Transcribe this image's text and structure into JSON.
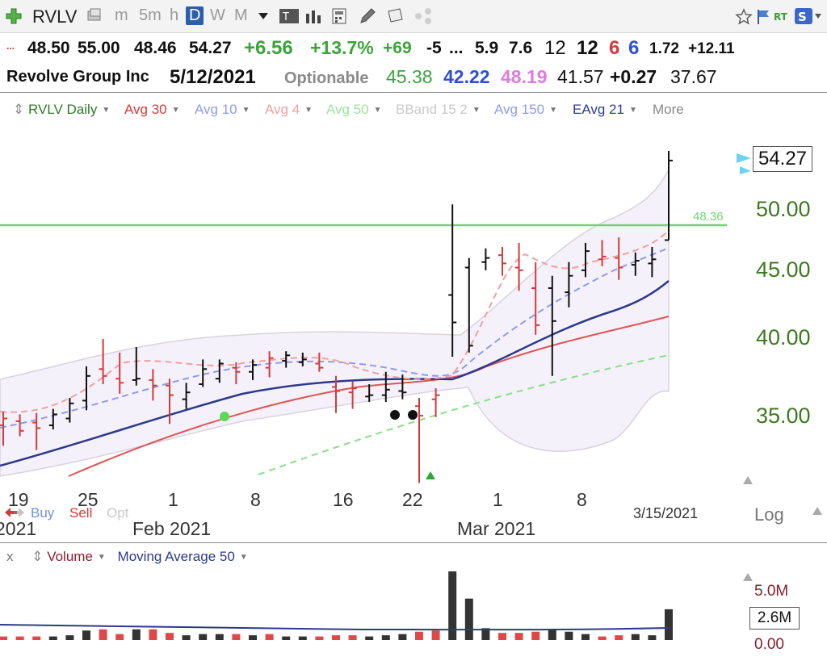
{
  "toolbar": {
    "symbol": "RVLV",
    "intervals": [
      "m",
      "5m",
      "h",
      "D",
      "W",
      "M"
    ],
    "active_interval": "D"
  },
  "quote": {
    "open": "48.50",
    "high": "55.00",
    "low": "48.46",
    "last": "54.27",
    "change": "+6.56",
    "change_pct": "+13.7%",
    "f1": "+69",
    "f2": "-5",
    "f3": "...",
    "f4": "5.9",
    "f5": "7.6",
    "f6": "12",
    "f7": "12",
    "f8": "6",
    "f9": "6",
    "f10": "1.72",
    "f11": "+12.11",
    "company": "Revolve Group Inc",
    "date": "5/12/2021",
    "optionable": "Optionable",
    "v1": "45.38",
    "v2": "42.22",
    "v3": "48.19",
    "v4": "41.57",
    "v5": "+0.27",
    "v6": "37.67",
    "menu_dots": "..."
  },
  "legend": {
    "symbol_label": "RVLV Daily",
    "avg30": "Avg 30",
    "avg10": "Avg 10",
    "avg4": "Avg 4",
    "avg50": "Avg 50",
    "bband": "BBand 15 2",
    "avg150": "Avg 150",
    "eavg21": "EAvg 21",
    "more": "More"
  },
  "colors": {
    "up_bar": "#111111",
    "down_bar": "#d43a3a",
    "avg30": "#e05555",
    "avg10": "#8f9af0",
    "avg4": "#f0a0a0",
    "avg50": "#7fe07f",
    "avg150": "#2d3a8c",
    "green_line": "#6fd66f",
    "price_label": "#3c7a1e"
  },
  "price_axis": {
    "ticks": [
      "50.00",
      "45.00",
      "40.00",
      "35.00"
    ],
    "last_label": "54.27",
    "green_line_label": "48.36"
  },
  "date_axis": {
    "days": [
      "19",
      "25",
      "1",
      "8",
      "16",
      "22",
      "1",
      "8"
    ],
    "months": [
      "2021",
      "Feb 2021",
      "Mar 2021"
    ],
    "current_date": "3/15/2021",
    "log_label": "Log"
  },
  "trade_buttons": {
    "buy": "Buy",
    "sell": "Sell",
    "opt": "Opt"
  },
  "volume": {
    "close_label": "x",
    "volume_label": "Volume",
    "ma_label": "Moving Average 50",
    "ticks": [
      "5.0M",
      "0.00"
    ],
    "current": "2.6M"
  },
  "chart_data": {
    "type": "bar",
    "note_series": "OHLC daily bars (black = up, red = down)",
    "ylim": [
      31,
      56
    ],
    "bars": [
      {
        "h": 36.0,
        "l": 33.5,
        "o": 35.0,
        "c": 35.5,
        "dir": "down"
      },
      {
        "h": 35.8,
        "l": 34.2,
        "o": 35.3,
        "c": 34.6,
        "dir": "down"
      },
      {
        "h": 35.9,
        "l": 33.2,
        "o": 35.2,
        "c": 34.8,
        "dir": "down"
      },
      {
        "h": 36.2,
        "l": 34.7,
        "o": 35.0,
        "c": 35.8,
        "dir": "up"
      },
      {
        "h": 37.0,
        "l": 35.2,
        "o": 35.5,
        "c": 36.6,
        "dir": "up"
      },
      {
        "h": 39.3,
        "l": 36.1,
        "o": 36.8,
        "c": 38.6,
        "dir": "up"
      },
      {
        "h": 41.3,
        "l": 38.0,
        "o": 39.1,
        "c": 38.6,
        "dir": "down"
      },
      {
        "h": 40.3,
        "l": 37.3,
        "o": 38.4,
        "c": 38.1,
        "dir": "down"
      },
      {
        "h": 40.7,
        "l": 37.9,
        "o": 38.3,
        "c": 38.4,
        "dir": "up"
      },
      {
        "h": 39.1,
        "l": 36.8,
        "o": 38.3,
        "c": 37.9,
        "dir": "down"
      },
      {
        "h": 38.4,
        "l": 35.1,
        "o": 37.9,
        "c": 37.2,
        "dir": "down"
      },
      {
        "h": 38.1,
        "l": 36.2,
        "o": 36.9,
        "c": 37.4,
        "dir": "up"
      },
      {
        "h": 39.8,
        "l": 37.8,
        "o": 38.0,
        "c": 39.1,
        "dir": "up"
      },
      {
        "h": 39.8,
        "l": 38.1,
        "o": 38.4,
        "c": 39.5,
        "dir": "up"
      },
      {
        "h": 39.6,
        "l": 38.0,
        "o": 39.2,
        "c": 38.9,
        "dir": "down"
      },
      {
        "h": 39.8,
        "l": 38.3,
        "o": 38.9,
        "c": 39.4,
        "dir": "up"
      },
      {
        "h": 40.4,
        "l": 38.5,
        "o": 39.2,
        "c": 39.9,
        "dir": "down"
      },
      {
        "h": 40.4,
        "l": 39.2,
        "o": 39.7,
        "c": 40.1,
        "dir": "up"
      },
      {
        "h": 40.3,
        "l": 39.3,
        "o": 39.6,
        "c": 39.8,
        "dir": "up"
      },
      {
        "h": 40.3,
        "l": 38.9,
        "o": 39.5,
        "c": 39.2,
        "dir": "down"
      },
      {
        "h": 38.6,
        "l": 35.9,
        "o": 37.8,
        "c": 37.5,
        "dir": "down"
      },
      {
        "h": 38.2,
        "l": 36.2,
        "o": 37.4,
        "c": 37.7,
        "dir": "down"
      },
      {
        "h": 38.0,
        "l": 36.7,
        "o": 37.1,
        "c": 37.2,
        "dir": "up"
      },
      {
        "h": 38.9,
        "l": 36.7,
        "o": 37.2,
        "c": 37.6,
        "dir": "up"
      },
      {
        "h": 38.7,
        "l": 36.9,
        "o": 37.5,
        "c": 37.4,
        "dir": "up"
      },
      {
        "h": 37.0,
        "l": 30.8,
        "o": 36.4,
        "c": 35.7,
        "dir": "down"
      },
      {
        "h": 37.7,
        "l": 35.6,
        "o": 36.9,
        "c": 37.2,
        "dir": "down"
      },
      {
        "h": 51.1,
        "l": 40.0,
        "o": 44.5,
        "c": 42.5,
        "dir": "up"
      },
      {
        "h": 47.2,
        "l": 40.3,
        "o": 46.5,
        "c": 40.8,
        "dir": "up"
      },
      {
        "h": 47.9,
        "l": 46.3,
        "o": 46.9,
        "c": 47.2,
        "dir": "up"
      },
      {
        "h": 48.0,
        "l": 45.9,
        "o": 47.4,
        "c": 46.8,
        "dir": "down"
      },
      {
        "h": 48.3,
        "l": 44.8,
        "o": 46.5,
        "c": 46.3,
        "dir": "down"
      },
      {
        "h": 46.9,
        "l": 41.6,
        "o": 45.0,
        "c": 42.3,
        "dir": "down"
      },
      {
        "h": 45.9,
        "l": 38.6,
        "o": 45.0,
        "c": 42.6,
        "dir": "up"
      },
      {
        "h": 46.9,
        "l": 43.6,
        "o": 44.7,
        "c": 45.9,
        "dir": "up"
      },
      {
        "h": 48.3,
        "l": 45.8,
        "o": 46.3,
        "c": 47.7,
        "dir": "up"
      },
      {
        "h": 48.5,
        "l": 46.6,
        "o": 47.1,
        "c": 47.3,
        "dir": "down"
      },
      {
        "h": 48.7,
        "l": 45.6,
        "o": 47.2,
        "c": 46.5,
        "dir": "down"
      },
      {
        "h": 47.6,
        "l": 45.9,
        "o": 46.7,
        "c": 47.0,
        "dir": "up"
      },
      {
        "h": 48.0,
        "l": 45.8,
        "o": 46.8,
        "c": 47.1,
        "dir": "up"
      },
      {
        "h": 55.0,
        "l": 48.5,
        "o": 48.5,
        "c": 54.3,
        "dir": "up"
      }
    ],
    "volume": [
      0.3,
      0.3,
      0.3,
      0.3,
      0.4,
      0.8,
      0.9,
      0.5,
      0.9,
      0.9,
      0.6,
      0.4,
      0.5,
      0.5,
      0.5,
      0.4,
      0.5,
      0.3,
      0.3,
      0.3,
      0.4,
      0.4,
      0.3,
      0.4,
      0.5,
      0.7,
      0.8,
      5.8,
      3.5,
      1.0,
      0.6,
      0.6,
      0.7,
      0.9,
      0.7,
      0.5,
      0.3,
      0.4,
      0.5,
      0.4,
      2.6
    ],
    "volume_ylim": [
      0,
      6
    ]
  }
}
